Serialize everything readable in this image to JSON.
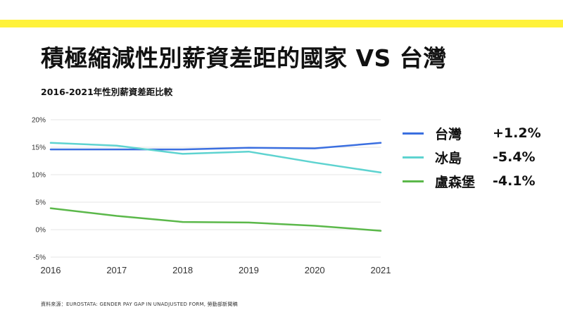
{
  "title": "積極縮減性別薪資差距的國家 VS 台灣",
  "chart_data": {
    "type": "line",
    "subtitle": "2016-2021年性別薪資差距比較",
    "x": [
      "2016",
      "2017",
      "2018",
      "2019",
      "2020",
      "2021"
    ],
    "yticks": [
      "20%",
      "15%",
      "10%",
      "5%",
      "0%",
      "-5%"
    ],
    "ylim": [
      -5,
      20
    ],
    "grid": true,
    "legend_position": "right",
    "series": [
      {
        "name": "台灣",
        "change": "+1.2%",
        "color": "#3B6FE0",
        "values": [
          14.6,
          14.6,
          14.6,
          14.9,
          14.8,
          15.8
        ]
      },
      {
        "name": "冰島",
        "change": "-5.4%",
        "color": "#5ED3D0",
        "values": [
          15.8,
          15.3,
          13.8,
          14.2,
          12.2,
          10.4
        ]
      },
      {
        "name": "盧森堡",
        "change": "-4.1%",
        "color": "#5BB84A",
        "values": [
          3.9,
          2.5,
          1.4,
          1.3,
          0.7,
          -0.2
        ]
      }
    ]
  },
  "source": "資料來源：EUROSTATA: GENDER PAY GAP IN UNADJUSTED FORM, 勞動部新聞稿"
}
